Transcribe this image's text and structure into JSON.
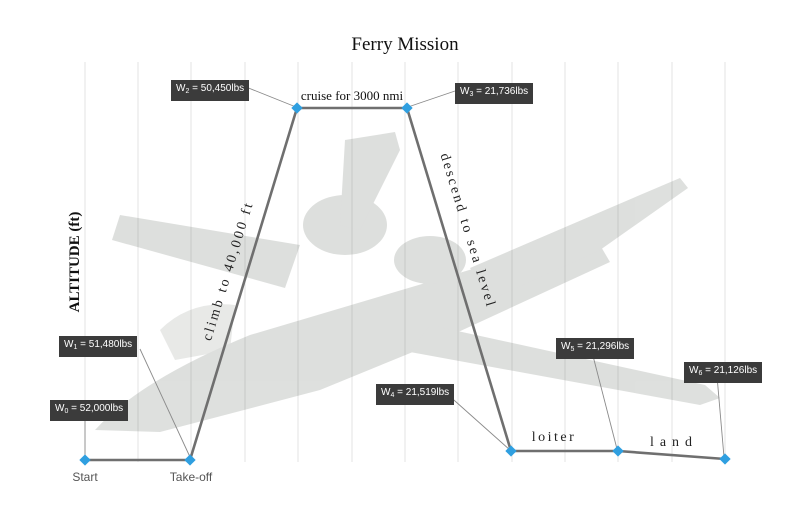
{
  "title": "Ferry Mission",
  "y_label": "ALTITUDE (ft)",
  "colors": {
    "path": "#6f6f6f",
    "point": "#2f9fe0",
    "label_bg": "#3b3b3b",
    "grid": "#e3e3e3",
    "aircraft": "#5b6259"
  },
  "segments": [
    {
      "key": "climb",
      "label": "climb to 40,000 ft"
    },
    {
      "key": "cruise",
      "label": "cruise for 3000 nmi"
    },
    {
      "key": "descend",
      "label": "descend to sea level"
    },
    {
      "key": "loiter",
      "label": "loiter"
    },
    {
      "key": "land",
      "label": "land"
    }
  ],
  "x_labels": {
    "start": "Start",
    "takeoff": "Take-off"
  },
  "weights": [
    {
      "sym": "W",
      "sub": "0",
      "value": "= 52,000lbs"
    },
    {
      "sym": "W",
      "sub": "1",
      "value": "= 51,480lbs"
    },
    {
      "sym": "W",
      "sub": "2",
      "value": "= 50,450lbs"
    },
    {
      "sym": "W",
      "sub": "3",
      "value": "= 21,736lbs"
    },
    {
      "sym": "W",
      "sub": "4",
      "value": "= 21,519lbs"
    },
    {
      "sym": "W",
      "sub": "5",
      "value": "= 21,296lbs"
    },
    {
      "sym": "W",
      "sub": "6",
      "value": "= 21,126lbs"
    }
  ]
}
